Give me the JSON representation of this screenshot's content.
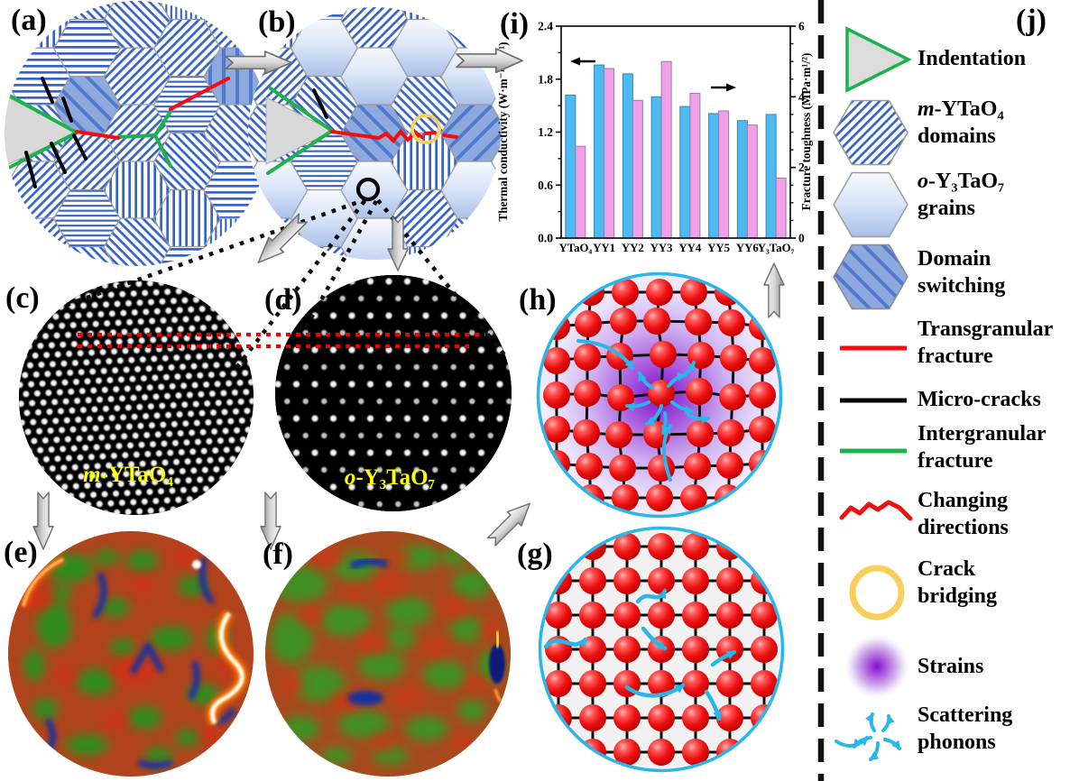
{
  "figure": {
    "panel_labels": {
      "a": "(a)",
      "b": "(b)",
      "c": "(c)",
      "d": "(d)",
      "e": "(e)",
      "f": "(f)",
      "g": "(g)",
      "h": "(h)",
      "i": "(i)",
      "j": "(j)"
    },
    "annotations": {
      "c_prefix": "m",
      "c_text": "-YTaO₄",
      "d_prefix": "o",
      "d_text": "-Y₃TaO₇"
    }
  },
  "chart_data": {
    "type": "bar",
    "categories": [
      "YTaO₄",
      "YY1",
      "YY2",
      "YY3",
      "YY4",
      "YY5",
      "YY6",
      "Y₃TaO₇"
    ],
    "series": [
      {
        "name": "Thermal conductivity",
        "axis": "left",
        "color": "#4dbbf2",
        "border": "#2e86b5",
        "values": [
          1.62,
          1.96,
          1.86,
          1.6,
          1.49,
          1.41,
          1.33,
          1.4
        ]
      },
      {
        "name": "Fracture toughness",
        "axis": "right",
        "color": "#efa0ea",
        "border": "#9e7d9e",
        "values": [
          2.6,
          4.8,
          3.9,
          5.0,
          4.1,
          3.6,
          3.2,
          1.7
        ]
      }
    ],
    "ylabel_left": "Thermal conductivity (W·m⁻¹·K⁻¹)",
    "ylabel_right": "Fracture toughness (MPa·m¹/²)",
    "ylim_left": [
      0,
      2.4
    ],
    "yticks_left": [
      0,
      0.6,
      1.2,
      1.8,
      2.4
    ],
    "ytick_minor_step_left": 0.3,
    "ylim_right": [
      0,
      6
    ],
    "yticks_right": [
      0,
      2,
      4,
      6
    ],
    "ytick_minor_step_right": 0.5,
    "grid": false,
    "legend_position": "none"
  },
  "legend": {
    "items": [
      {
        "icon": "indentation-triangle",
        "prefix": "",
        "label": "Indentation"
      },
      {
        "icon": "striped-hexagon",
        "prefix": "m",
        "label": "-YTaO₄\ndomains"
      },
      {
        "icon": "gradient-hexagon",
        "prefix": "o",
        "label": "-Y₃TaO₇\ngrains"
      },
      {
        "icon": "domain-switching-hexagon",
        "prefix": "",
        "label": "Domain\nswitching"
      },
      {
        "icon": "red-line",
        "prefix": "",
        "label": "Transgranular\nfracture"
      },
      {
        "icon": "black-line",
        "prefix": "",
        "label": "Micro-cracks"
      },
      {
        "icon": "green-line",
        "prefix": "",
        "label": "Intergranular\nfracture"
      },
      {
        "icon": "red-zigzag",
        "prefix": "",
        "label": "Changing\ndirections"
      },
      {
        "icon": "yellow-circle",
        "prefix": "",
        "label": "Crack\nbridging"
      },
      {
        "icon": "purple-gradient-circle",
        "prefix": "",
        "label": "Strains"
      },
      {
        "icon": "phonon-scattering-arrows",
        "prefix": "",
        "label": "Scattering\nphonons"
      }
    ]
  },
  "colors": {
    "bar_blue": "#4dbbf2",
    "bar_pink": "#efa0ea",
    "stripe_blue": "#3563c8",
    "domain_fill": "#8ea9dd",
    "domain_line": "#4f79cc",
    "transgranular_red": "#fa0a0a",
    "micro_crack_black": "#000000",
    "intergranular_green": "#1cb24b",
    "crack_bridging_yellow": "#f7cf5a",
    "strain_purple": "#7b10c9",
    "phonon_cyan": "#29b6ea",
    "atom_red": "#ee1111"
  }
}
